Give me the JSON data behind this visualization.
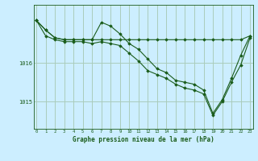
{
  "title": "Graphe pression niveau de la mer (hPa)",
  "bg_color": "#cceeff",
  "grid_color": "#aaccbb",
  "line_color": "#1a5c1a",
  "x_labels": [
    "0",
    "1",
    "2",
    "3",
    "4",
    "5",
    "6",
    "7",
    "8",
    "9",
    "10",
    "11",
    "12",
    "13",
    "14",
    "15",
    "16",
    "17",
    "18",
    "19",
    "20",
    "21",
    "22",
    "23"
  ],
  "y_ticks": [
    1015,
    1016
  ],
  "ylim": [
    1014.3,
    1017.5
  ],
  "xlim": [
    -0.3,
    23.3
  ],
  "series1": [
    1017.1,
    1016.85,
    1016.65,
    1016.6,
    1016.6,
    1016.6,
    1016.6,
    1016.6,
    1016.6,
    1016.6,
    1016.6,
    1016.6,
    1016.6,
    1016.6,
    1016.6,
    1016.6,
    1016.6,
    1016.6,
    1016.6,
    1016.6,
    1016.6,
    1016.6,
    1016.6,
    1016.7
  ],
  "series2": [
    1017.1,
    1016.85,
    1016.65,
    1016.6,
    1016.6,
    1016.6,
    1016.6,
    1017.05,
    1016.95,
    1016.75,
    1016.5,
    1016.35,
    1016.1,
    1015.85,
    1015.75,
    1015.55,
    1015.5,
    1015.45,
    1015.3,
    1014.7,
    1015.05,
    1015.6,
    1016.2,
    1016.7
  ],
  "series3": [
    1017.1,
    1016.7,
    1016.6,
    1016.55,
    1016.55,
    1016.55,
    1016.5,
    1016.55,
    1016.5,
    1016.45,
    1016.25,
    1016.05,
    1015.8,
    1015.7,
    1015.6,
    1015.45,
    1015.35,
    1015.3,
    1015.2,
    1014.65,
    1015.0,
    1015.5,
    1015.95,
    1016.65
  ]
}
